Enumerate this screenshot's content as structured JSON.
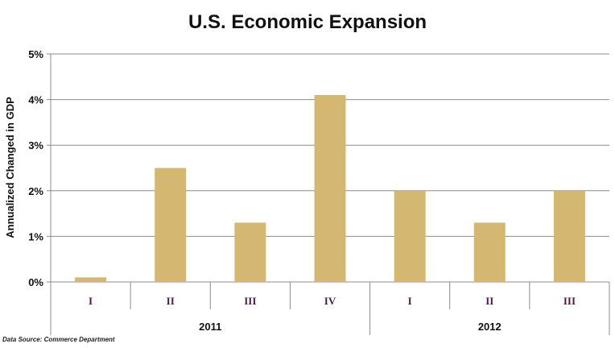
{
  "chart_data": {
    "type": "bar",
    "title": "U.S. Economic Expansion",
    "ylabel": "Annualized Changed in GDP",
    "xlabel": "",
    "ylim": [
      0,
      5
    ],
    "yticks": [
      "0%",
      "1%",
      "2%",
      "3%",
      "4%",
      "5%"
    ],
    "grid": true,
    "bar_color": "#d4b872",
    "categories": [
      "I",
      "II",
      "III",
      "IV",
      "I",
      "II",
      "III"
    ],
    "groups": [
      {
        "label": "2011",
        "count": 4
      },
      {
        "label": "2012",
        "count": 3
      }
    ],
    "values": [
      0.1,
      2.5,
      1.3,
      4.1,
      2.0,
      1.3,
      2.0
    ],
    "source": "Data Source: Commerce Department"
  }
}
